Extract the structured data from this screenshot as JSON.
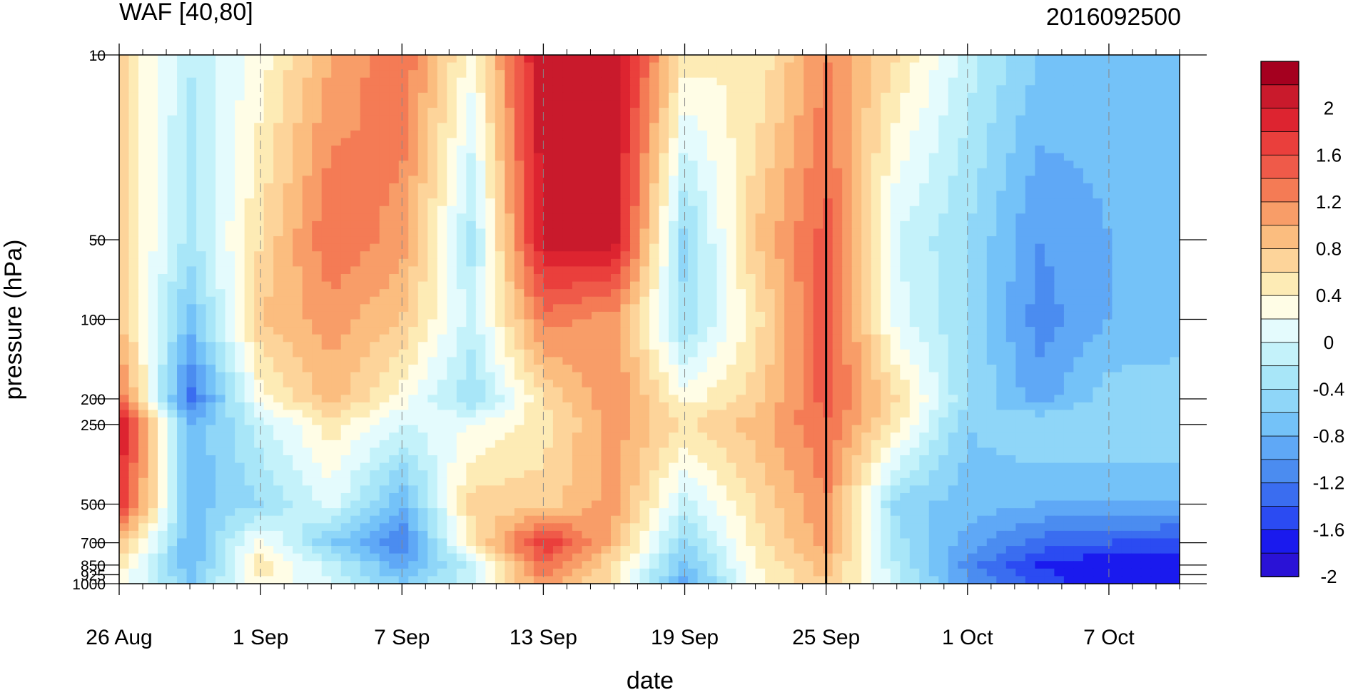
{
  "chart_data": {
    "type": "heatmap",
    "title": "WAF [40,80]",
    "subtitle": "2016092500",
    "xlabel": "date",
    "ylabel": "pressure (hPa)",
    "x_ticks": [
      "26 Aug",
      "1 Sep",
      "7 Sep",
      "13 Sep",
      "19 Sep",
      "25 Sep",
      "1 Oct",
      "7 Oct"
    ],
    "x_range": [
      "2016-08-26",
      "2016-10-10"
    ],
    "y_ticks": [
      10,
      50,
      100,
      200,
      250,
      500,
      700,
      850,
      925,
      1000
    ],
    "y_tick_labels": [
      "10",
      "50",
      "100",
      "200",
      "250",
      "500",
      "700",
      "850",
      "925",
      "1000"
    ],
    "y_scale": "log",
    "y_range": [
      10,
      1000
    ],
    "y_inverted": true,
    "grid": "dashed vertical lines at date ticks",
    "reference_line": "2016-09-25",
    "colorbar": {
      "levels": [
        -2.2,
        -2.0,
        -1.8,
        -1.6,
        -1.4,
        -1.2,
        -1.0,
        -0.8,
        -0.6,
        -0.4,
        -0.2,
        0.0,
        0.2,
        0.4,
        0.6,
        0.8,
        1.0,
        1.2,
        1.4,
        1.6,
        1.8,
        2.0,
        2.2
      ],
      "colors": [
        "#2a12d6",
        "#1a1aee",
        "#2b4bf2",
        "#3a6df0",
        "#4b8cf0",
        "#5fa8f6",
        "#74c2f8",
        "#8fd6f8",
        "#a8e6f8",
        "#c4f2fa",
        "#e4fbfd",
        "#fffde6",
        "#fdebb5",
        "#fdd49a",
        "#fbbd7f",
        "#f89d68",
        "#f47b55",
        "#ef5a49",
        "#ea3f3c",
        "#dd2430",
        "#c91a2c",
        "#a5001f"
      ],
      "labels": [
        "2",
        "1.6",
        "1.2",
        "0.8",
        "0.4",
        "0",
        "-0.4",
        "-0.8",
        "-1.2",
        "-1.6",
        "-2"
      ]
    },
    "grid_values": {
      "dates": [
        "2016-08-26",
        "2016-08-29",
        "2016-09-01",
        "2016-09-04",
        "2016-09-07",
        "2016-09-10",
        "2016-09-13",
        "2016-09-16",
        "2016-09-19",
        "2016-09-22",
        "2016-09-25",
        "2016-09-28",
        "2016-10-01",
        "2016-10-04",
        "2016-10-07",
        "2016-10-10"
      ],
      "pressure": [
        10,
        50,
        100,
        200,
        250,
        500,
        700,
        850,
        1000
      ],
      "values": [
        [
          0.5,
          -0.4,
          0.1,
          0.8,
          1.2,
          0.1,
          2.0,
          2.0,
          0.3,
          0.2,
          1.0,
          0.4,
          -0.3,
          -0.8,
          -0.9,
          -0.9
        ],
        [
          0.5,
          -0.5,
          0.4,
          1.2,
          0.9,
          -0.5,
          1.9,
          1.9,
          -0.7,
          0.6,
          1.3,
          -0.2,
          -0.6,
          -1.2,
          -1.0,
          -1.0
        ],
        [
          0.6,
          -0.9,
          0.6,
          0.9,
          0.6,
          -0.3,
          1.1,
          0.9,
          -0.6,
          0.3,
          1.4,
          -0.1,
          -0.6,
          -1.3,
          -1.0,
          -1.0
        ],
        [
          1.2,
          -1.5,
          0.1,
          0.7,
          0.1,
          -0.6,
          0.4,
          1.0,
          0.1,
          0.5,
          1.3,
          0.4,
          -0.6,
          -1.1,
          -0.7,
          -0.6
        ],
        [
          1.9,
          -1.0,
          -0.3,
          0.3,
          -0.2,
          0.0,
          0.3,
          0.9,
          0.4,
          0.7,
          1.2,
          0.3,
          -0.8,
          -0.6,
          -0.6,
          -0.6
        ],
        [
          1.6,
          -0.9,
          -0.6,
          -0.1,
          -1.0,
          0.5,
          0.5,
          0.9,
          -0.3,
          0.4,
          1.0,
          -0.7,
          -0.9,
          -1.0,
          -1.0,
          -1.0
        ],
        [
          0.7,
          -1.0,
          0.1,
          -0.8,
          -1.4,
          0.3,
          1.6,
          0.7,
          -0.7,
          0.3,
          0.9,
          -0.5,
          -1.1,
          -1.5,
          -1.6,
          -1.7
        ],
        [
          0.3,
          -1.0,
          0.3,
          -0.3,
          -1.1,
          -0.3,
          1.2,
          0.4,
          -0.9,
          0.2,
          0.7,
          -0.4,
          -1.3,
          -1.8,
          -2.0,
          -2.0
        ],
        [
          0.1,
          -0.8,
          0.2,
          -0.2,
          -0.8,
          -0.2,
          1.0,
          0.3,
          -1.1,
          0.1,
          0.6,
          -0.3,
          -1.2,
          -1.7,
          -1.9,
          -2.0
        ]
      ]
    }
  }
}
